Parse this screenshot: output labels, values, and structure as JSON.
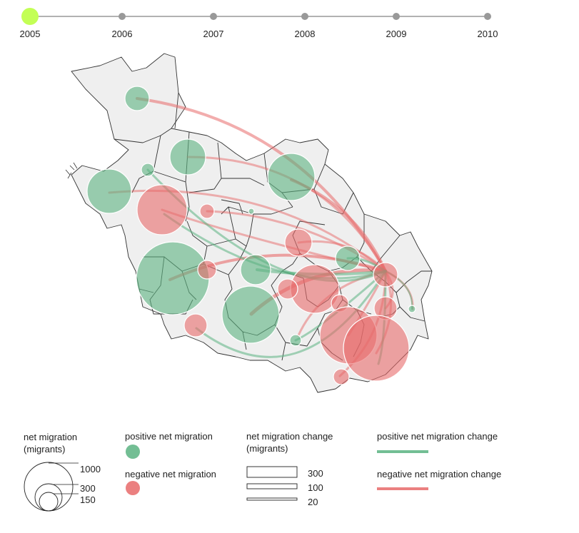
{
  "timeline": {
    "years": [
      "2005",
      "2006",
      "2007",
      "2008",
      "2009",
      "2010"
    ],
    "selected": "2005",
    "selected_color": "#c3ff55",
    "tick_color": "#999999"
  },
  "colors": {
    "positive": "#5bb381",
    "negative": "#e86a6a",
    "region_fill": "#efefef",
    "region_stroke": "#333333"
  },
  "legend": {
    "size_title": "net migration\n(migrants)",
    "size_title_line1": "net migration",
    "size_title_line2": "(migrants)",
    "size_values": [
      "1000",
      "300",
      "150"
    ],
    "positive_label": "positive net migration",
    "negative_label": "negative net migration",
    "change_title_line1": "net migration change",
    "change_title_line2": "(migrants)",
    "change_values": [
      "300",
      "100",
      "20"
    ],
    "positive_change_label": "positive net migration change",
    "negative_change_label": "negative net migration change"
  }
}
